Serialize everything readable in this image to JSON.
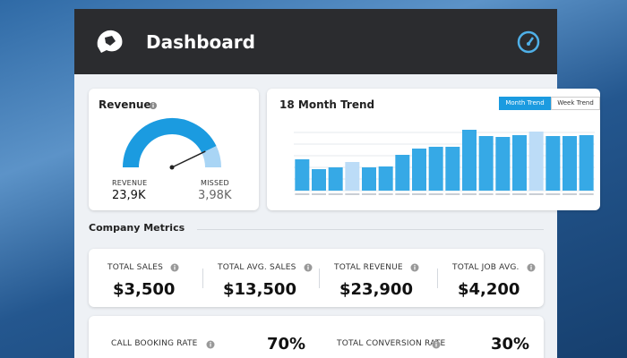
{
  "header": {
    "title": "Dashboard"
  },
  "revenue": {
    "title": "Revenue",
    "categories": [
      "REVENUE",
      "MISSED"
    ],
    "values": [
      23900,
      3980
    ],
    "value_labels": [
      "23,9K",
      "3,98K"
    ],
    "colors": [
      "#1b9be0",
      "#a9d5f5"
    ]
  },
  "trend": {
    "title": "18 Month Trend",
    "buttons": [
      "Month Trend",
      "Week Trend"
    ],
    "values": [
      35,
      24,
      26,
      32,
      26,
      27,
      40,
      47,
      49,
      49,
      68,
      61,
      60,
      62,
      66,
      61,
      61,
      62
    ],
    "colors": [
      "#36a9e6",
      "#36a9e6",
      "#36a9e6",
      "#bcdcf7",
      "#36a9e6",
      "#36a9e6",
      "#36a9e6",
      "#36a9e6",
      "#36a9e6",
      "#36a9e6",
      "#36a9e6",
      "#36a9e6",
      "#36a9e6",
      "#36a9e6",
      "#bcdcf7",
      "#36a9e6",
      "#36a9e6",
      "#36a9e6"
    ]
  },
  "metrics": {
    "title": "Company Metrics",
    "items": [
      {
        "label": "TOTAL SALES",
        "value": "$3,500"
      },
      {
        "label": "TOTAL AVG. SALES",
        "value": "$13,500"
      },
      {
        "label": "TOTAL REVENUE",
        "value": "$23,900"
      },
      {
        "label": "TOTAL JOB AVG.",
        "value": "$4,200"
      }
    ]
  },
  "rates": {
    "items": [
      {
        "label": "CALL BOOKING RATE",
        "value": "70%"
      },
      {
        "label": "TOTAL CONVERSION RATE",
        "value": "30%"
      }
    ]
  }
}
